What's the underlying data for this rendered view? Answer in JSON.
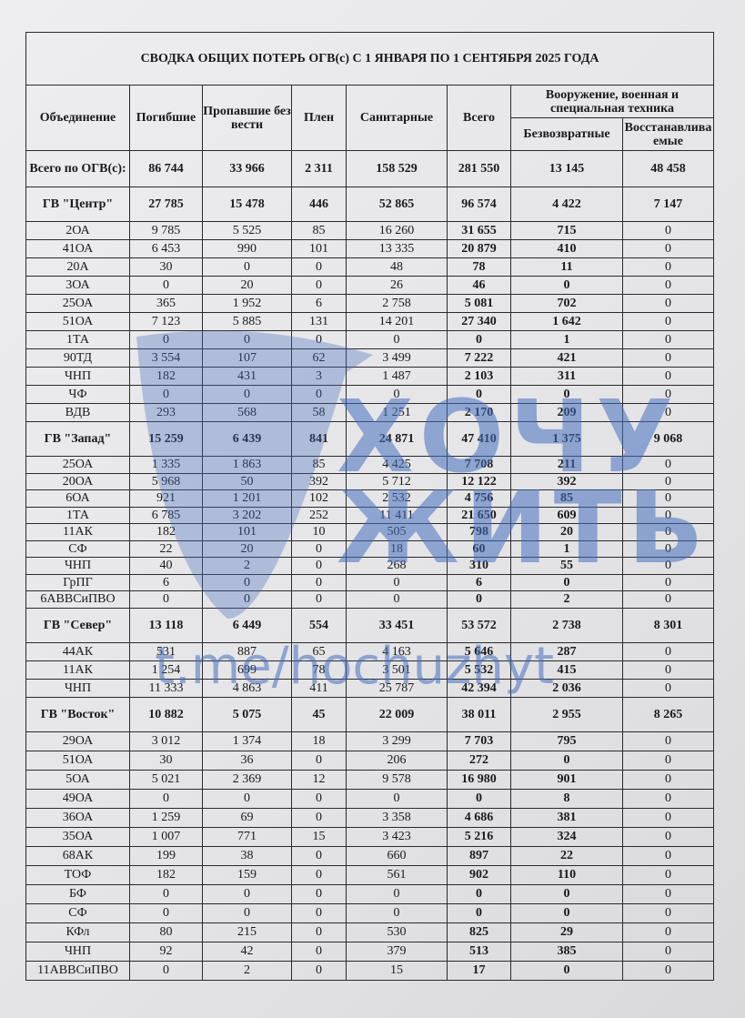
{
  "title": "СВОДКА ОБЩИХ ПОТЕРЬ ОГВ(с) С 1 ЯНВАРЯ ПО 1 СЕНТЯБРЯ 2025 ГОДА",
  "headers": {
    "unit": "Объединение",
    "killed": "Погибшие",
    "missing": "Пропавшие без вести",
    "captured": "Плен",
    "sanitary": "Санитарные",
    "total": "Всего",
    "equipment": "Вооружение, военная и специальная техника",
    "irrecoverable": "Безвозвратные",
    "recoverable": "Восстанавливаемые"
  },
  "total_row": {
    "label": "Всего по ОГВ(с):",
    "values": [
      "86 744",
      "33 966",
      "2 311",
      "158 529",
      "281 550",
      "13 145",
      "48 458"
    ]
  },
  "groups": [
    {
      "label": "ГВ \"Центр\"",
      "values": [
        "27 785",
        "15 478",
        "446",
        "52 865",
        "96 574",
        "4 422",
        "7 147"
      ],
      "rows": [
        {
          "label": "2ОА",
          "values": [
            "9 785",
            "5 525",
            "85",
            "16 260",
            "31 655",
            "715",
            "0"
          ]
        },
        {
          "label": "41ОА",
          "values": [
            "6 453",
            "990",
            "101",
            "13 335",
            "20 879",
            "410",
            "0"
          ]
        },
        {
          "label": "20А",
          "values": [
            "30",
            "0",
            "0",
            "48",
            "78",
            "11",
            "0"
          ]
        },
        {
          "label": "3ОА",
          "values": [
            "0",
            "20",
            "0",
            "26",
            "46",
            "0",
            "0"
          ]
        },
        {
          "label": "25ОА",
          "values": [
            "365",
            "1 952",
            "6",
            "2 758",
            "5 081",
            "702",
            "0"
          ]
        },
        {
          "label": "51ОА",
          "values": [
            "7 123",
            "5 885",
            "131",
            "14 201",
            "27 340",
            "1 642",
            "0"
          ]
        },
        {
          "label": "1ТА",
          "values": [
            "0",
            "0",
            "0",
            "0",
            "0",
            "1",
            "0"
          ]
        },
        {
          "label": "90ТД",
          "values": [
            "3 554",
            "107",
            "62",
            "3 499",
            "7 222",
            "421",
            "0"
          ]
        },
        {
          "label": "ЧНП",
          "values": [
            "182",
            "431",
            "3",
            "1 487",
            "2 103",
            "311",
            "0"
          ]
        },
        {
          "label": "ЧФ",
          "values": [
            "0",
            "0",
            "0",
            "0",
            "0",
            "0",
            "0"
          ]
        },
        {
          "label": "ВДВ",
          "values": [
            "293",
            "568",
            "58",
            "1 251",
            "2 170",
            "209",
            "0"
          ]
        }
      ]
    },
    {
      "label": "ГВ \"Запад\"",
      "values": [
        "15 259",
        "6 439",
        "841",
        "24 871",
        "47 410",
        "1 375",
        "9 068"
      ],
      "rows": [
        {
          "label": "25ОА",
          "values": [
            "1 335",
            "1 863",
            "85",
            "4 425",
            "7 708",
            "211",
            "0"
          ]
        },
        {
          "label": "20ОА",
          "values": [
            "5 968",
            "50",
            "392",
            "5 712",
            "12 122",
            "392",
            "0"
          ]
        },
        {
          "label": "6ОА",
          "values": [
            "921",
            "1 201",
            "102",
            "2 532",
            "4 756",
            "85",
            "0"
          ]
        },
        {
          "label": "1ТА",
          "values": [
            "6 785",
            "3 202",
            "252",
            "11 411",
            "21 650",
            "609",
            "0"
          ]
        },
        {
          "label": "11АК",
          "values": [
            "182",
            "101",
            "10",
            "505",
            "798",
            "20",
            "0"
          ]
        },
        {
          "label": "СФ",
          "values": [
            "22",
            "20",
            "0",
            "18",
            "60",
            "1",
            "0"
          ]
        },
        {
          "label": "ЧНП",
          "values": [
            "40",
            "2",
            "0",
            "268",
            "310",
            "55",
            "0"
          ]
        },
        {
          "label": "ГрПГ",
          "values": [
            "6",
            "0",
            "0",
            "0",
            "6",
            "0",
            "0"
          ]
        },
        {
          "label": "6АВВСиПВО",
          "values": [
            "0",
            "0",
            "0",
            "0",
            "0",
            "2",
            "0"
          ]
        }
      ]
    },
    {
      "label": "ГВ \"Север\"",
      "values": [
        "13 118",
        "6 449",
        "554",
        "33 451",
        "53 572",
        "2 738",
        "8 301"
      ],
      "rows": [
        {
          "label": "44АК",
          "values": [
            "531",
            "887",
            "65",
            "4 163",
            "5 646",
            "287",
            "0"
          ]
        },
        {
          "label": "11АК",
          "values": [
            "1 254",
            "699",
            "78",
            "3 501",
            "5 532",
            "415",
            "0"
          ]
        },
        {
          "label": "ЧНП",
          "values": [
            "11 333",
            "4 863",
            "411",
            "25 787",
            "42 394",
            "2 036",
            "0"
          ]
        }
      ]
    },
    {
      "label": "ГВ \"Восток\"",
      "values": [
        "10 882",
        "5 075",
        "45",
        "22 009",
        "38 011",
        "2 955",
        "8 265"
      ],
      "rows": [
        {
          "label": "29ОА",
          "values": [
            "3 012",
            "1 374",
            "18",
            "3 299",
            "7 703",
            "795",
            "0"
          ]
        },
        {
          "label": "51ОА",
          "values": [
            "30",
            "36",
            "0",
            "206",
            "272",
            "0",
            "0"
          ]
        },
        {
          "label": "5ОА",
          "values": [
            "5 021",
            "2 369",
            "12",
            "9 578",
            "16 980",
            "901",
            "0"
          ]
        },
        {
          "label": "49ОА",
          "values": [
            "0",
            "0",
            "0",
            "0",
            "0",
            "8",
            "0"
          ]
        },
        {
          "label": "36ОА",
          "values": [
            "1 259",
            "69",
            "0",
            "3 358",
            "4 686",
            "381",
            "0"
          ]
        },
        {
          "label": "35ОА",
          "values": [
            "1 007",
            "771",
            "15",
            "3 423",
            "5 216",
            "324",
            "0"
          ]
        },
        {
          "label": "68АК",
          "values": [
            "199",
            "38",
            "0",
            "660",
            "897",
            "22",
            "0"
          ]
        },
        {
          "label": "ТОФ",
          "values": [
            "182",
            "159",
            "0",
            "561",
            "902",
            "110",
            "0"
          ]
        },
        {
          "label": "БФ",
          "values": [
            "0",
            "0",
            "0",
            "0",
            "0",
            "0",
            "0"
          ]
        },
        {
          "label": "СФ",
          "values": [
            "0",
            "0",
            "0",
            "0",
            "0",
            "0",
            "0"
          ]
        },
        {
          "label": "КФл",
          "values": [
            "80",
            "215",
            "0",
            "530",
            "825",
            "29",
            "0"
          ]
        },
        {
          "label": "ЧНП",
          "values": [
            "92",
            "42",
            "0",
            "379",
            "513",
            "385",
            "0"
          ]
        },
        {
          "label": "11АВВСиПВО",
          "values": [
            "0",
            "2",
            "0",
            "15",
            "17",
            "0",
            "0"
          ]
        }
      ]
    }
  ],
  "watermark": {
    "line1": "ХОЧУ",
    "line2": "ЖИТЬ",
    "url": "t.me/hochuzhyt",
    "color": "#466ebe"
  }
}
